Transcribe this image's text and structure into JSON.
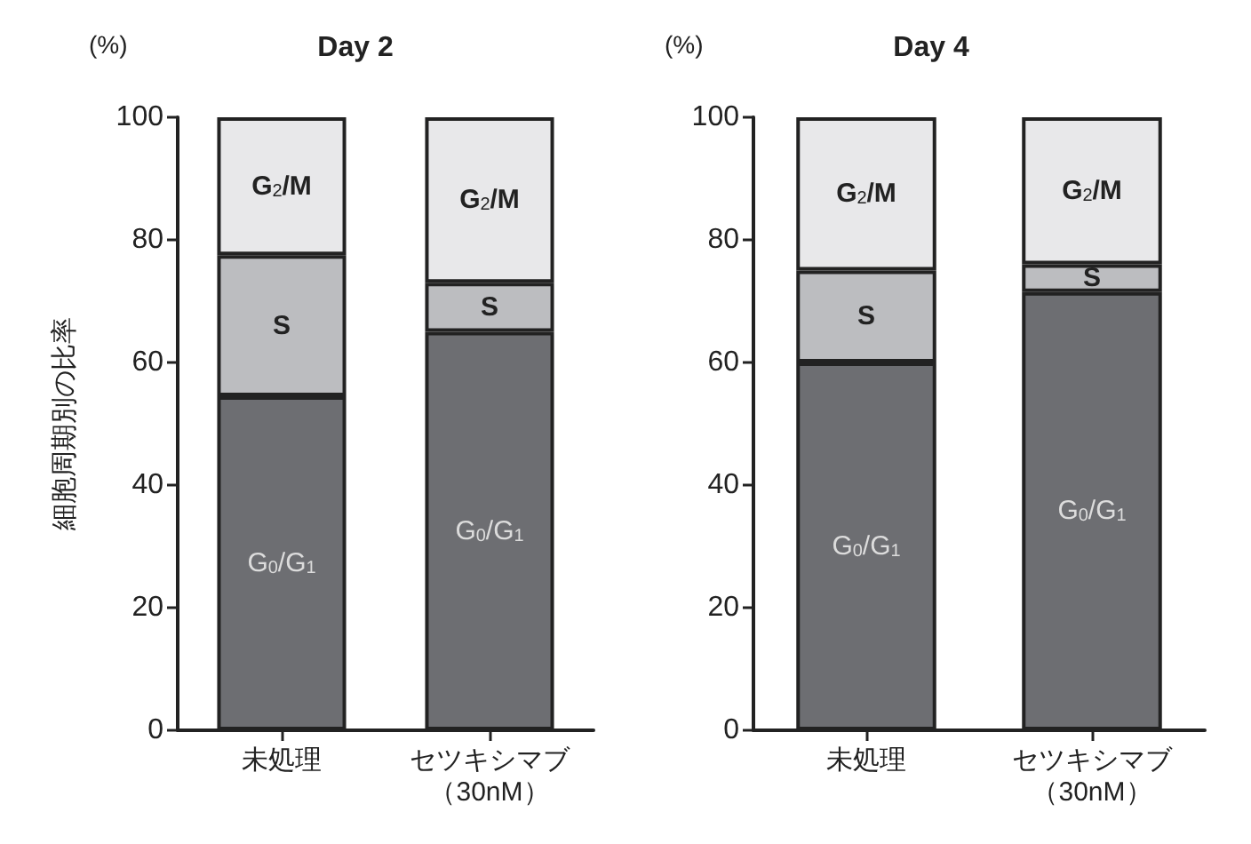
{
  "chart_data": [
    {
      "type": "bar",
      "title": "Day 2",
      "ylabel": "細胞周期別の比率",
      "annotations": [
        "(%)"
      ],
      "categories": [
        "未処理",
        "セツキシマブ（30nM）"
      ],
      "stacked": true,
      "ylim": [
        0,
        100
      ],
      "yticks": [
        0,
        20,
        40,
        60,
        80,
        100
      ],
      "grid": false,
      "legend": false,
      "series": [
        {
          "name": "G$_{0}$/G$_{1}$",
          "color": "#6d6e72",
          "values": [
            54.5,
            65
          ]
        },
        {
          "name": "S",
          "color": "#bcbdc0",
          "values": [
            23,
            8
          ]
        },
        {
          "name": "G$_{2}$/M",
          "color": "#e8e8ea",
          "values": [
            22.5,
            27
          ]
        }
      ]
    },
    {
      "type": "bar",
      "title": "Day 4",
      "annotations": [
        "(%)"
      ],
      "categories": [
        "未処理",
        "セツキシマブ（30nM）"
      ],
      "stacked": true,
      "ylim": [
        0,
        100
      ],
      "yticks": [
        0,
        20,
        40,
        60,
        80,
        100
      ],
      "grid": false,
      "legend": false,
      "series": [
        {
          "name": "G$_{0}$/G$_{1}$",
          "color": "#6d6e72",
          "values": [
            60,
            71.5
          ]
        },
        {
          "name": "S",
          "color": "#bcbdc0",
          "values": [
            15,
            4.5
          ]
        },
        {
          "name": "G$_{2}$/M",
          "color": "#e8e8ea",
          "values": [
            25,
            24
          ]
        }
      ]
    }
  ]
}
